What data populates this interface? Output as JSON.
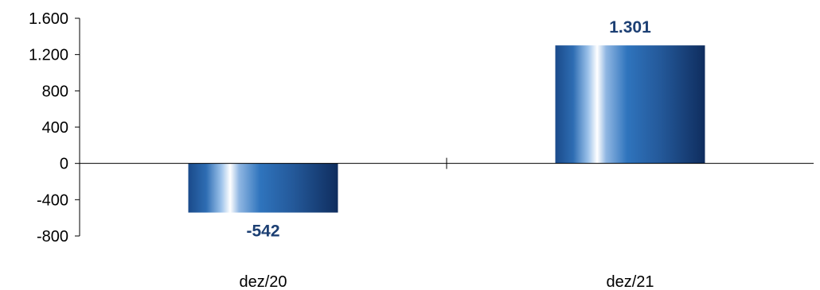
{
  "chart_data": {
    "type": "bar",
    "categories": [
      "dez/20",
      "dez/21"
    ],
    "values": [
      -542,
      1301
    ],
    "data_labels": [
      "-542",
      "1.301"
    ],
    "title": "",
    "xlabel": "",
    "ylabel": "",
    "ylim": [
      -800,
      1600
    ],
    "yticks": [
      -800,
      -400,
      0,
      400,
      800,
      1200,
      1600
    ],
    "ytick_labels": [
      "-800",
      "-400",
      "0",
      "400",
      "800",
      "1.200",
      "1.600"
    ],
    "grid": false,
    "legend": "none",
    "colors": {
      "bar_dark": "#0f2d5e",
      "bar_mid": "#2b6cb0",
      "bar_light": "#ffffff",
      "label": "#1c3f73",
      "axis": "#000000"
    }
  }
}
